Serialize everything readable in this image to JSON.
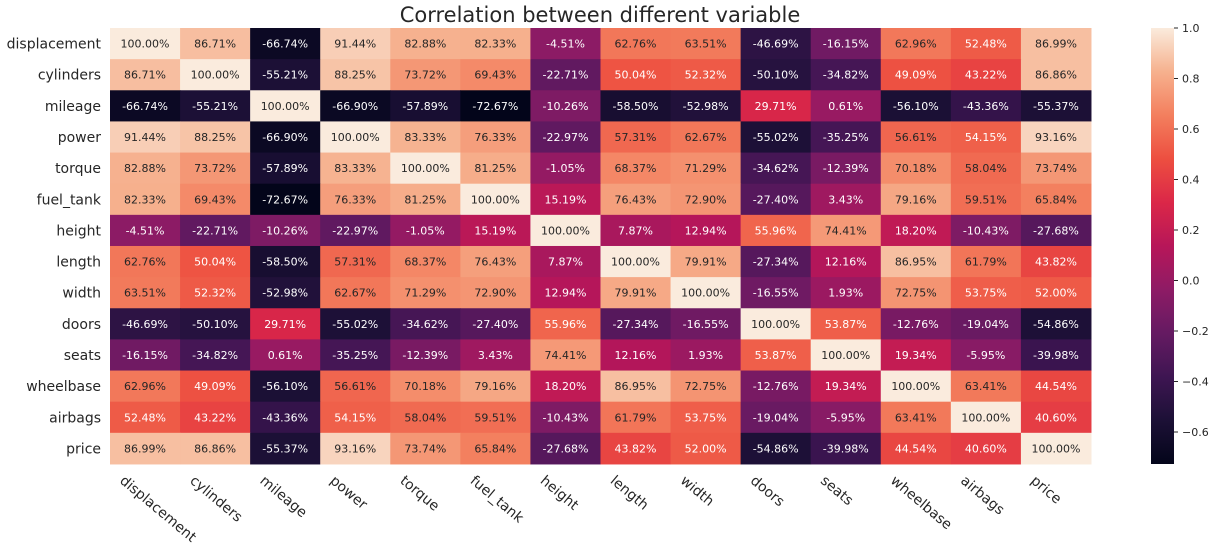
{
  "chart_data": {
    "type": "heatmap",
    "title": "Correlation between different variable",
    "variables": [
      "displacement",
      "cylinders",
      "mileage",
      "power",
      "torque",
      "fuel_tank",
      "height",
      "length",
      "width",
      "doors",
      "seats",
      "wheelbase",
      "airbags",
      "price"
    ],
    "values": [
      [
        100.0,
        86.71,
        -66.74,
        91.44,
        82.88,
        82.33,
        -4.51,
        62.76,
        63.51,
        -46.69,
        -16.15,
        62.96,
        52.48,
        86.99
      ],
      [
        86.71,
        100.0,
        -55.21,
        88.25,
        73.72,
        69.43,
        -22.71,
        50.04,
        52.32,
        -50.1,
        -34.82,
        49.09,
        43.22,
        86.86
      ],
      [
        -66.74,
        -55.21,
        100.0,
        -66.9,
        -57.89,
        -72.67,
        -10.26,
        -58.5,
        -52.98,
        29.71,
        0.61,
        -56.1,
        -43.36,
        -55.37
      ],
      [
        91.44,
        88.25,
        -66.9,
        100.0,
        83.33,
        76.33,
        -22.97,
        57.31,
        62.67,
        -55.02,
        -35.25,
        56.61,
        54.15,
        93.16
      ],
      [
        82.88,
        73.72,
        -57.89,
        83.33,
        100.0,
        81.25,
        -1.05,
        68.37,
        71.29,
        -34.62,
        -12.39,
        70.18,
        58.04,
        73.74
      ],
      [
        82.33,
        69.43,
        -72.67,
        76.33,
        81.25,
        100.0,
        15.19,
        76.43,
        72.9,
        -27.4,
        3.43,
        79.16,
        59.51,
        65.84
      ],
      [
        -4.51,
        -22.71,
        -10.26,
        -22.97,
        -1.05,
        15.19,
        100.0,
        7.87,
        12.94,
        55.96,
        74.41,
        18.2,
        -10.43,
        -27.68
      ],
      [
        62.76,
        50.04,
        -58.5,
        57.31,
        68.37,
        76.43,
        7.87,
        100.0,
        79.91,
        -27.34,
        12.16,
        86.95,
        61.79,
        43.82
      ],
      [
        63.51,
        52.32,
        -52.98,
        62.67,
        71.29,
        72.9,
        12.94,
        79.91,
        100.0,
        -16.55,
        1.93,
        72.75,
        53.75,
        52.0
      ],
      [
        -46.69,
        -50.1,
        29.71,
        -55.02,
        -34.62,
        -27.4,
        55.96,
        -27.34,
        -16.55,
        100.0,
        53.87,
        -12.76,
        -19.04,
        -54.86
      ],
      [
        -16.15,
        -34.82,
        0.61,
        -35.25,
        -12.39,
        3.43,
        74.41,
        12.16,
        1.93,
        53.87,
        100.0,
        19.34,
        -5.95,
        -39.98
      ],
      [
        62.96,
        49.09,
        -56.1,
        56.61,
        70.18,
        79.16,
        18.2,
        86.95,
        72.75,
        -12.76,
        19.34,
        100.0,
        63.41,
        44.54
      ],
      [
        52.48,
        43.22,
        -43.36,
        54.15,
        58.04,
        59.51,
        -10.43,
        61.79,
        53.75,
        -19.04,
        -5.95,
        63.41,
        100.0,
        40.6
      ],
      [
        86.99,
        86.86,
        -55.37,
        93.16,
        73.74,
        65.84,
        -27.68,
        43.82,
        52.0,
        -54.86,
        -39.98,
        44.54,
        40.6,
        100.0
      ]
    ],
    "value_format": "percent_2dp",
    "colormap": "rocket",
    "color_range": [
      -0.7267,
      1.0
    ],
    "colorbar": {
      "ticks": [
        -0.6,
        -0.4,
        -0.2,
        0.0,
        0.2,
        0.4,
        0.6,
        0.8,
        1.0
      ],
      "tick_labels": [
        "−0.6",
        "−0.4",
        "−0.2",
        "0.0",
        "0.2",
        "0.4",
        "0.6",
        "0.8",
        "1.0"
      ],
      "placement": "right"
    },
    "xtick_rotation": -40
  }
}
